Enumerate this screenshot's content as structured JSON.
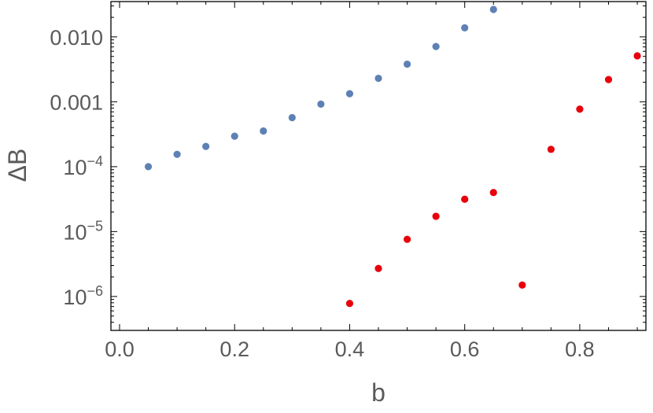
{
  "chart_data": {
    "type": "scatter",
    "title": "",
    "xlabel": "b",
    "ylabel": "ΔB",
    "xlim": [
      -0.015,
      0.915
    ],
    "ylim": [
      3e-07,
      0.035
    ],
    "yscale": "log",
    "grid": false,
    "x_ticks": [
      {
        "value": 0.0,
        "label": "0.0"
      },
      {
        "value": 0.2,
        "label": "0.2"
      },
      {
        "value": 0.4,
        "label": "0.4"
      },
      {
        "value": 0.6,
        "label": "0.6"
      },
      {
        "value": 0.8,
        "label": "0.8"
      }
    ],
    "y_ticks": [
      {
        "value": 1e-06,
        "base": "10",
        "exp": "−6"
      },
      {
        "value": 1e-05,
        "base": "10",
        "exp": "−5"
      },
      {
        "value": 0.0001,
        "base": "10",
        "exp": "−4"
      },
      {
        "value": 0.001,
        "label": "0.001"
      },
      {
        "value": 0.01,
        "label": "0.010"
      }
    ],
    "series": [
      {
        "color": "#5e81b5",
        "x": [
          0.05,
          0.1,
          0.15,
          0.2,
          0.25,
          0.3,
          0.35,
          0.4,
          0.45,
          0.5,
          0.55,
          0.6,
          0.65
        ],
        "y": [
          0.0001,
          0.000155,
          0.000205,
          0.000295,
          0.000355,
          0.00057,
          0.00092,
          0.00133,
          0.0023,
          0.0038,
          0.0071,
          0.0138,
          0.0265
        ]
      },
      {
        "color": "#e8000b",
        "x": [
          0.4,
          0.45,
          0.5,
          0.55,
          0.6,
          0.65,
          0.7,
          0.75,
          0.8,
          0.85,
          0.9
        ],
        "y": [
          7.8e-07,
          2.7e-06,
          7.6e-06,
          1.72e-05,
          3.15e-05,
          4e-05,
          1.5e-06,
          0.000185,
          0.00077,
          0.0022,
          0.0051
        ]
      }
    ]
  }
}
